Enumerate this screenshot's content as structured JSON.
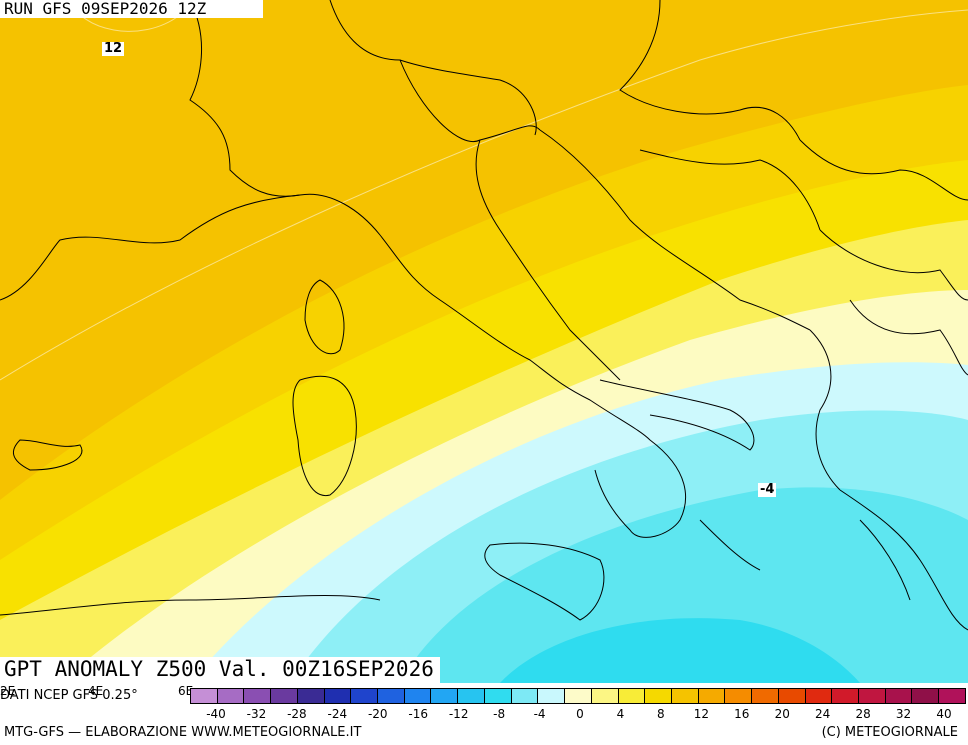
{
  "header": {
    "run_label": "RUN GFS 09SEP2026 12Z"
  },
  "map": {
    "title": "GPT ANOMALY Z500 Val. 00Z16SEP2026",
    "contour_labels": [
      "12",
      "-4"
    ],
    "stray_axis_labels": [
      "2E",
      "4E",
      "6E"
    ]
  },
  "colorbar": {
    "colors": [
      "#c58fd6",
      "#a66cc4",
      "#8a4fb2",
      "#6a3a9f",
      "#3a2b94",
      "#1f2fb0",
      "#1f44cc",
      "#1f62e0",
      "#1f84ef",
      "#22a6f3",
      "#27c4f0",
      "#30dcef",
      "#7de9f5",
      "#c9f8fd",
      "#fdfbc9",
      "#fcf684",
      "#f8ec37",
      "#f5d900",
      "#f5c300",
      "#f5aa00",
      "#f58c00",
      "#f06a00",
      "#e84a00",
      "#e02a10",
      "#d11a2a",
      "#c01640",
      "#a8124c",
      "#8f1048",
      "#b0125a"
    ],
    "ticks": [
      "-40",
      "-32",
      "-28",
      "-24",
      "-20",
      "-16",
      "-12",
      "-8",
      "-4",
      "0",
      "4",
      "8",
      "12",
      "16",
      "20",
      "24",
      "28",
      "32",
      "40"
    ]
  },
  "footer": {
    "source": "DATI NCEP GFS 0.25°",
    "left": "MTG-GFS — ELABORAZIONE WWW.METEOGIORNALE.IT",
    "right": "(C) METEOGIORNALE"
  }
}
